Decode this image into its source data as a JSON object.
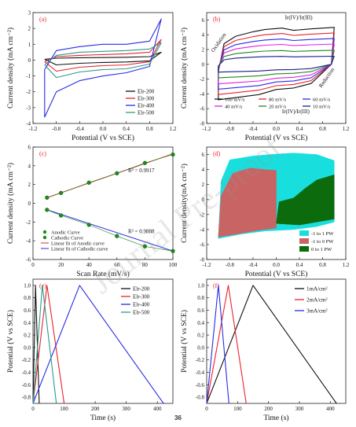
{
  "page_number": "36",
  "watermark": "Journal Pre-proof",
  "colors": {
    "black": "#111111",
    "red": "#e8242c",
    "blue": "#2a2ae6",
    "teal": "#2a9a8e",
    "magenta": "#e020e0",
    "navy": "#1b1b8a",
    "green": "#1f8a1f",
    "purple": "#7030a0",
    "cyan": "#19dede",
    "rose": "#c86464",
    "darkgreen": "#0c6b0c"
  },
  "panels": [
    {
      "letter": "(a)",
      "ylabel": "Current density (mA cm⁻²)",
      "xlabel": "Potential (V vs SCE)"
    },
    {
      "letter": "(b)",
      "ylabel": "Current density (mA cm⁻²)",
      "xlabel": "Potential (V vs SCE)"
    },
    {
      "letter": "(c)",
      "ylabel": "Current density (mA cm⁻²)",
      "xlabel": "Scan Rate (mV/s)"
    },
    {
      "letter": "(d)",
      "ylabel": "Current density(mA cm⁻²)",
      "xlabel": "Potential (V vs SCE)"
    },
    {
      "letter": "(e)",
      "ylabel": "Potential (V vs SCE)",
      "xlabel": "Time (s)"
    },
    {
      "letter": "(f)",
      "ylabel": "Potential (V vs SCE)",
      "xlabel": "Time (s)"
    }
  ],
  "chart_data": [
    {
      "type": "line",
      "panel": "a",
      "xlim": [
        -1.2,
        1.2
      ],
      "ylim": [
        -4,
        3
      ],
      "xticks": [
        "-1.2",
        "-0.8",
        "-0.4",
        "0.0",
        "0.4",
        "0.8",
        "1.2"
      ],
      "yticks": [
        "-4",
        "-3",
        "-2",
        "-1",
        "0",
        "1",
        "2",
        "3"
      ],
      "series": [
        {
          "name": "Elr-200",
          "color": "#111111",
          "upper": [
            [
              -1.0,
              0.05
            ],
            [
              -0.8,
              0.12
            ],
            [
              -0.4,
              0.15
            ],
            [
              0.0,
              0.16
            ],
            [
              0.4,
              0.18
            ],
            [
              0.8,
              0.22
            ],
            [
              1.0,
              0.5
            ]
          ],
          "lower": [
            [
              1.0,
              0.5
            ],
            [
              0.8,
              -0.05
            ],
            [
              0.4,
              -0.12
            ],
            [
              0.0,
              -0.15
            ],
            [
              -0.4,
              -0.2
            ],
            [
              -0.8,
              -0.3
            ],
            [
              -1.0,
              0.05
            ]
          ]
        },
        {
          "name": "Elr-300",
          "color": "#e8242c",
          "upper": [
            [
              -1.0,
              -0.1
            ],
            [
              -0.8,
              0.22
            ],
            [
              -0.4,
              0.3
            ],
            [
              0.0,
              0.35
            ],
            [
              0.4,
              0.4
            ],
            [
              0.8,
              0.5
            ],
            [
              1.0,
              1.3
            ]
          ],
          "lower": [
            [
              1.0,
              1.3
            ],
            [
              0.8,
              -0.1
            ],
            [
              0.4,
              -0.3
            ],
            [
              0.0,
              -0.35
            ],
            [
              -0.4,
              -0.45
            ],
            [
              -0.8,
              -0.7
            ],
            [
              -1.0,
              -0.1
            ]
          ]
        },
        {
          "name": "Elr-400",
          "color": "#2a2ae6",
          "upper": [
            [
              -1.0,
              -0.6
            ],
            [
              -0.8,
              0.6
            ],
            [
              -0.4,
              0.85
            ],
            [
              0.0,
              1.0
            ],
            [
              0.4,
              1.0
            ],
            [
              0.8,
              1.2
            ],
            [
              1.0,
              2.6
            ]
          ],
          "lower": [
            [
              1.0,
              2.6
            ],
            [
              0.8,
              -0.4
            ],
            [
              0.4,
              -0.8
            ],
            [
              0.0,
              -1.0
            ],
            [
              -0.4,
              -1.3
            ],
            [
              -0.8,
              -2.0
            ],
            [
              -1.0,
              -3.6
            ],
            [
              -1.0,
              -0.6
            ]
          ]
        },
        {
          "name": "Elr-500",
          "color": "#2a9a8e",
          "upper": [
            [
              -1.0,
              -0.3
            ],
            [
              -0.8,
              0.3
            ],
            [
              -0.4,
              0.5
            ],
            [
              0.0,
              0.55
            ],
            [
              0.4,
              0.6
            ],
            [
              0.8,
              0.7
            ],
            [
              1.0,
              1.1
            ]
          ],
          "lower": [
            [
              1.0,
              1.1
            ],
            [
              0.8,
              -0.25
            ],
            [
              0.4,
              -0.55
            ],
            [
              0.0,
              -0.6
            ],
            [
              -0.4,
              -0.75
            ],
            [
              -0.8,
              -1.1
            ],
            [
              -1.0,
              -0.3
            ]
          ]
        }
      ]
    },
    {
      "type": "line",
      "panel": "b",
      "xlim": [
        -1.2,
        1.2
      ],
      "ylim": [
        -8,
        7
      ],
      "xticks": [
        "-1.2",
        "-0.8",
        "-0.4",
        "0.0",
        "0.4",
        "0.8",
        "1.2"
      ],
      "yticks": [
        "-8",
        "-6",
        "-4",
        "-2",
        "0",
        "2",
        "4",
        "6"
      ],
      "annotations": [
        "Ir(IV)/Ir(III)",
        "Oxidation",
        "Ir(IV)/Ir(III)",
        "Reduction"
      ],
      "series": [
        {
          "name": "100 mV/s",
          "color": "#111111",
          "scale": 1.0
        },
        {
          "name": "80 mV/s",
          "color": "#e8242c",
          "scale": 0.85
        },
        {
          "name": "60 mV/s",
          "color": "#2a2ae6",
          "scale": 0.7
        },
        {
          "name": "40 mV/s",
          "color": "#e020e0",
          "scale": 0.55
        },
        {
          "name": "20 mV/s",
          "color": "#1f8a1f",
          "scale": 0.38
        },
        {
          "name": "10 mV/s",
          "color": "#1b1b8a",
          "scale": 0.22
        }
      ],
      "base_upper": [
        [
          -1.0,
          -1.0
        ],
        [
          -0.9,
          2.8
        ],
        [
          -0.7,
          3.8
        ],
        [
          -0.4,
          4.4
        ],
        [
          -0.2,
          4.7
        ],
        [
          0.1,
          4.9
        ],
        [
          0.3,
          4.6
        ],
        [
          0.6,
          4.8
        ],
        [
          1.0,
          5.0
        ]
      ],
      "base_lower": [
        [
          1.0,
          5.0
        ],
        [
          0.95,
          0.0
        ],
        [
          0.6,
          -2.6
        ],
        [
          0.3,
          -3.2
        ],
        [
          0.0,
          -3.4
        ],
        [
          -0.3,
          -4.1
        ],
        [
          -0.7,
          -4.5
        ],
        [
          -1.0,
          -4.8
        ],
        [
          -1.0,
          -1.0
        ]
      ]
    },
    {
      "type": "scatter",
      "panel": "c",
      "xlim": [
        0,
        100
      ],
      "ylim": [
        -6,
        6
      ],
      "xticks": [
        "0",
        "20",
        "40",
        "60",
        "80",
        "100"
      ],
      "yticks": [
        "-6",
        "-4",
        "-2",
        "0",
        "2",
        "4",
        "6"
      ],
      "x": [
        10,
        20,
        40,
        60,
        80,
        100
      ],
      "series": [
        {
          "name": "Anodic Curve",
          "color": "#1f8a1f",
          "values": [
            0.6,
            1.1,
            2.2,
            3.2,
            4.3,
            5.2
          ]
        },
        {
          "name": "Cathodic Curve",
          "color": "#1f8a1f",
          "values": [
            -0.7,
            -1.3,
            -2.3,
            -3.5,
            -4.6,
            -5.1
          ]
        }
      ],
      "fits": [
        {
          "name": "Linear fit of Anodic curve",
          "color": "#e8242c",
          "slope": 0.052,
          "intercept": 0.08,
          "r2": "R² = 0.9917"
        },
        {
          "name": "Linear fit of Cathodic curve",
          "color": "#2a2ae6",
          "slope": -0.049,
          "intercept": -0.2,
          "r2": "R² = 0.9888"
        }
      ]
    },
    {
      "type": "area",
      "panel": "d",
      "xlim": [
        -1.2,
        1.2
      ],
      "ylim": [
        -8,
        7
      ],
      "xticks": [
        "-1.2",
        "-0.8",
        "-0.4",
        "0.0",
        "0.4",
        "0.8",
        "1.2"
      ],
      "yticks": [
        "-8",
        "-6",
        "-4",
        "-2",
        "0",
        "2",
        "4",
        "6"
      ],
      "series": [
        {
          "name": "-1 to 1 PW",
          "color": "#19dede",
          "polygon": [
            [
              -1.0,
              -5.2
            ],
            [
              -0.95,
              2.5
            ],
            [
              -0.8,
              5.3
            ],
            [
              -0.4,
              5.8
            ],
            [
              -0.1,
              6.0
            ],
            [
              0.3,
              6.2
            ],
            [
              0.7,
              6.0
            ],
            [
              1.0,
              5.2
            ],
            [
              1.0,
              -3.0
            ],
            [
              0.7,
              -3.6
            ],
            [
              0.3,
              -4.0
            ],
            [
              -0.2,
              -4.2
            ],
            [
              -0.6,
              -4.6
            ],
            [
              -1.0,
              -5.2
            ]
          ]
        },
        {
          "name": "-1 to 0 PW",
          "color": "#c86464",
          "polygon": [
            [
              -1.0,
              -5.0
            ],
            [
              -0.95,
              0.5
            ],
            [
              -0.75,
              3.5
            ],
            [
              -0.45,
              4.2
            ],
            [
              -0.2,
              4.0
            ],
            [
              0.0,
              3.9
            ],
            [
              0.0,
              -3.8
            ],
            [
              -0.3,
              -4.1
            ],
            [
              -0.6,
              -4.5
            ],
            [
              -1.0,
              -5.0
            ]
          ]
        },
        {
          "name": "0 to 1 PW",
          "color": "#0c6b0c",
          "polygon": [
            [
              0.0,
              -3.2
            ],
            [
              0.05,
              -0.3
            ],
            [
              0.3,
              0.2
            ],
            [
              0.5,
              1.5
            ],
            [
              0.7,
              2.6
            ],
            [
              1.0,
              3.3
            ],
            [
              1.0,
              -2.6
            ],
            [
              0.7,
              -3.0
            ],
            [
              0.4,
              -3.4
            ],
            [
              0.0,
              -3.2
            ]
          ]
        }
      ]
    },
    {
      "type": "line",
      "panel": "e",
      "xlim": [
        0,
        450
      ],
      "ylim": [
        -0.9,
        1.1
      ],
      "xticks": [
        "0",
        "100",
        "200",
        "300",
        "400"
      ],
      "yticks": [
        "-0.8",
        "-0.6",
        "-0.4",
        "-0.2",
        "0.0",
        "0.2",
        "0.4",
        "0.6",
        "0.8",
        "1.0"
      ],
      "series": [
        {
          "name": "Elr-200",
          "color": "#111111",
          "points": [
            [
              0,
              -0.9
            ],
            [
              8,
              1.0
            ],
            [
              20,
              -0.9
            ]
          ]
        },
        {
          "name": "Elr-300",
          "color": "#e8242c",
          "points": [
            [
              0,
              -0.9
            ],
            [
              45,
              1.0
            ],
            [
              100,
              -0.9
            ]
          ]
        },
        {
          "name": "Elr-400",
          "color": "#2a2ae6",
          "points": [
            [
              0,
              -0.9
            ],
            [
              150,
              1.0
            ],
            [
              420,
              -0.9
            ]
          ]
        },
        {
          "name": "Elr-500",
          "color": "#2a9a8e",
          "points": [
            [
              0,
              -0.9
            ],
            [
              30,
              1.0
            ],
            [
              75,
              -0.9
            ]
          ]
        }
      ]
    },
    {
      "type": "line",
      "panel": "f",
      "xlim": [
        0,
        450
      ],
      "ylim": [
        -0.9,
        1.1
      ],
      "xticks": [
        "0",
        "100",
        "200",
        "300",
        "400"
      ],
      "yticks": [
        "-0.8",
        "-0.6",
        "-0.4",
        "-0.2",
        "0.0",
        "0.2",
        "0.4",
        "0.6",
        "0.8",
        "1.0"
      ],
      "series": [
        {
          "name": "1mA/cm²",
          "color": "#111111",
          "points": [
            [
              0,
              -0.9
            ],
            [
              150,
              1.0
            ],
            [
              420,
              -0.9
            ]
          ]
        },
        {
          "name": "2mA/cm²",
          "color": "#e8242c",
          "points": [
            [
              0,
              -0.9
            ],
            [
              70,
              1.0
            ],
            [
              128,
              -0.9
            ]
          ]
        },
        {
          "name": "3mA/cm²",
          "color": "#2a2ae6",
          "points": [
            [
              0,
              -0.9
            ],
            [
              38,
              1.0
            ],
            [
              72,
              -0.9
            ]
          ]
        }
      ]
    }
  ]
}
